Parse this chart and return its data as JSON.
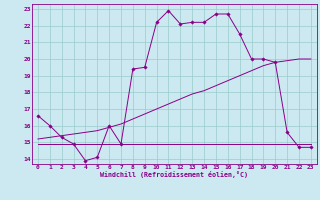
{
  "xlabel": "Windchill (Refroidissement éolien,°C)",
  "xlim": [
    -0.5,
    23.5
  ],
  "ylim": [
    13.7,
    23.3
  ],
  "yticks": [
    14,
    15,
    16,
    17,
    18,
    19,
    20,
    21,
    22,
    23
  ],
  "xticks": [
    0,
    1,
    2,
    3,
    4,
    5,
    6,
    7,
    8,
    9,
    10,
    11,
    12,
    13,
    14,
    15,
    16,
    17,
    18,
    19,
    20,
    21,
    22,
    23
  ],
  "bg_color": "#cce8f0",
  "grid_color": "#99cccc",
  "line_color": "#880088",
  "curve1_x": [
    0,
    1,
    2,
    3,
    4,
    5,
    6,
    7,
    8,
    9,
    10,
    11,
    12,
    13,
    14,
    15,
    16,
    17,
    18,
    19,
    20,
    21,
    22,
    23
  ],
  "curve1_y": [
    16.6,
    16.0,
    15.3,
    14.9,
    13.9,
    14.1,
    16.0,
    14.9,
    19.4,
    19.5,
    22.2,
    22.9,
    22.1,
    22.2,
    22.2,
    22.7,
    22.7,
    21.5,
    20.0,
    20.0,
    19.8,
    15.6,
    14.7,
    14.7
  ],
  "curve2_x": [
    0,
    1,
    2,
    3,
    4,
    5,
    6,
    7,
    8,
    9,
    10,
    11,
    12,
    13,
    14,
    15,
    16,
    17,
    18,
    19,
    20,
    21,
    22,
    23
  ],
  "curve2_y": [
    15.2,
    15.3,
    15.4,
    15.5,
    15.6,
    15.7,
    15.9,
    16.1,
    16.4,
    16.7,
    17.0,
    17.3,
    17.6,
    17.9,
    18.1,
    18.4,
    18.7,
    19.0,
    19.3,
    19.6,
    19.8,
    19.9,
    20.0,
    20.0
  ],
  "curve3_x": [
    0,
    1,
    2,
    3,
    4,
    5,
    6,
    7,
    8,
    9,
    10,
    11,
    12,
    13,
    14,
    15,
    16,
    17,
    18,
    19,
    20,
    21,
    22,
    23
  ],
  "curve3_y": [
    14.9,
    14.9,
    14.9,
    14.9,
    14.9,
    14.9,
    14.9,
    14.9,
    14.9,
    14.9,
    14.9,
    14.9,
    14.9,
    14.9,
    14.9,
    14.9,
    14.9,
    14.9,
    14.9,
    14.9,
    14.9,
    14.9,
    14.9,
    14.9
  ]
}
